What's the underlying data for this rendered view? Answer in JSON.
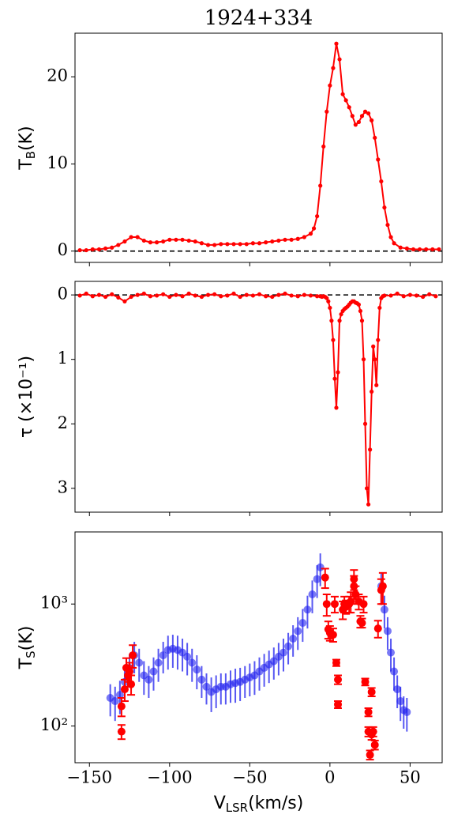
{
  "chart_data": [
    {
      "type": "line",
      "title": "1924+334",
      "ylabel": {
        "base": "T",
        "sub": "B",
        "unit": "(K)"
      },
      "xlim": [
        -159,
        70
      ],
      "xticks": [
        -150,
        -100,
        -50,
        0,
        50
      ],
      "ylim": [
        -1.3,
        25
      ],
      "yticks": [
        0,
        10,
        20
      ],
      "hline": 0,
      "color": "#ff0000",
      "x": [
        -156,
        -152,
        -148,
        -144,
        -140,
        -136,
        -132,
        -128,
        -124,
        -120,
        -116,
        -112,
        -108,
        -104,
        -100,
        -96,
        -92,
        -88,
        -84,
        -80,
        -76,
        -72,
        -68,
        -64,
        -60,
        -56,
        -52,
        -48,
        -44,
        -40,
        -36,
        -32,
        -28,
        -24,
        -20,
        -16,
        -12,
        -10,
        -8,
        -6,
        -4,
        -2,
        0,
        2,
        4,
        6,
        8,
        10,
        12,
        14,
        16,
        18,
        20,
        22,
        24,
        26,
        28,
        30,
        32,
        34,
        36,
        38,
        40,
        44,
        48,
        52,
        56,
        60,
        64,
        68
      ],
      "values": [
        0.1,
        0.1,
        0.2,
        0.2,
        0.3,
        0.4,
        0.7,
        1.1,
        1.6,
        1.6,
        1.2,
        1.0,
        1.0,
        1.1,
        1.3,
        1.3,
        1.3,
        1.2,
        1.1,
        0.9,
        0.7,
        0.7,
        0.8,
        0.8,
        0.8,
        0.8,
        0.8,
        0.9,
        0.9,
        1.0,
        1.1,
        1.2,
        1.3,
        1.3,
        1.4,
        1.6,
        2.0,
        2.6,
        4,
        7.5,
        12,
        16,
        19,
        21,
        23.8,
        22,
        18,
        17.3,
        16.5,
        15.5,
        14.5,
        14.8,
        15.5,
        16,
        15.8,
        15,
        13,
        10.5,
        8,
        5,
        3,
        1.6,
        0.9,
        0.4,
        0.3,
        0.2,
        0.2,
        0.2,
        0.2,
        0.2
      ]
    },
    {
      "type": "line",
      "ylabel": {
        "base": "τ (×10⁻¹)"
      },
      "xlim": [
        -159,
        70
      ],
      "xticks": [
        -150,
        -100,
        -50,
        0,
        50
      ],
      "ylim": [
        3.37,
        -0.21
      ],
      "yticks": [
        0,
        1,
        2,
        3
      ],
      "hline": 0,
      "color": "#ff0000",
      "x": [
        -156,
        -152,
        -148,
        -144,
        -140,
        -136,
        -132,
        -128,
        -124,
        -120,
        -116,
        -112,
        -108,
        -104,
        -100,
        -96,
        -92,
        -88,
        -84,
        -80,
        -76,
        -72,
        -68,
        -64,
        -60,
        -56,
        -52,
        -48,
        -44,
        -40,
        -36,
        -32,
        -28,
        -24,
        -20,
        -16,
        -12,
        -8,
        -6,
        -5,
        -4,
        -3,
        -2,
        -1,
        0,
        1,
        2,
        3,
        4,
        5,
        6,
        7,
        8,
        9,
        10,
        11,
        12,
        13,
        14,
        15,
        16,
        17,
        18,
        19,
        20,
        21,
        22,
        23,
        24,
        25,
        26,
        27,
        28,
        29,
        30,
        31,
        32,
        33,
        34,
        38,
        42,
        46,
        50,
        54,
        58,
        62,
        66
      ],
      "values": [
        0.01,
        -0.02,
        0.02,
        0,
        0.03,
        -0.01,
        0.04,
        0.1,
        0.03,
        0,
        -0.02,
        0.02,
        0.01,
        -0.01,
        0.03,
        0,
        0.02,
        -0.02,
        0.01,
        0.03,
        0,
        -0.01,
        0.02,
        0.01,
        -0.02,
        0.03,
        0,
        0.01,
        -0.01,
        0.02,
        0.03,
        0,
        -0.02,
        0.01,
        0.02,
        0,
        0.01,
        0.02,
        0.02,
        0.03,
        0.02,
        0.03,
        0.05,
        0.1,
        0.2,
        0.4,
        0.7,
        1.3,
        1.75,
        1.2,
        0.4,
        0.3,
        0.25,
        0.22,
        0.2,
        0.18,
        0.15,
        0.12,
        0.1,
        0.1,
        0.12,
        0.13,
        0.15,
        0.25,
        0.4,
        1.0,
        2.0,
        3.0,
        3.25,
        2.4,
        1.5,
        0.8,
        1.0,
        1.4,
        0.7,
        0.2,
        0.05,
        0.02,
        0.01,
        0.01,
        -0.02,
        0.02,
        0,
        0.01,
        0.03,
        -0.01,
        0.02
      ]
    },
    {
      "type": "scatter",
      "ylabel": {
        "base": "T",
        "sub": "S",
        "unit": "(K)"
      },
      "xlabel": {
        "base": "V",
        "sub": "LSR",
        "unit": "(km/s)"
      },
      "xlim": [
        -159,
        70
      ],
      "xticks": [
        {
          "value": -150,
          "label": "−150"
        },
        {
          "value": -100,
          "label": "−100"
        },
        {
          "value": -50,
          "label": "−50"
        },
        0,
        50
      ],
      "ylim": [
        50,
        3900
      ],
      "log_y": true,
      "yticks": [
        {
          "value": 100,
          "label": "10²"
        },
        {
          "value": 1000,
          "label": "10³"
        }
      ],
      "series": [
        {
          "color": "#2020ee",
          "x": [
            -137,
            -134,
            -131,
            -128,
            -125,
            -122,
            -119,
            -116,
            -113,
            -110,
            -107,
            -104,
            -101,
            -98,
            -95,
            -92,
            -89,
            -86,
            -83,
            -80,
            -77,
            -74,
            -71,
            -68,
            -65,
            -62,
            -59,
            -56,
            -53,
            -50,
            -47,
            -44,
            -41,
            -38,
            -35,
            -32,
            -29,
            -26,
            -23,
            -20,
            -17,
            -14,
            -11,
            -8,
            -6,
            32,
            34,
            36,
            38,
            40,
            42,
            44,
            46,
            48
          ],
          "values": [
            170,
            160,
            180,
            230,
            300,
            380,
            330,
            260,
            240,
            280,
            330,
            380,
            420,
            430,
            420,
            400,
            370,
            330,
            290,
            240,
            210,
            190,
            200,
            210,
            210,
            220,
            225,
            230,
            240,
            250,
            260,
            280,
            300,
            320,
            340,
            370,
            400,
            450,
            520,
            600,
            700,
            900,
            1200,
            1600,
            2000,
            1400,
            900,
            600,
            400,
            280,
            200,
            160,
            135,
            130
          ],
          "errors": [
            50,
            50,
            55,
            70,
            90,
            110,
            100,
            80,
            70,
            85,
            100,
            110,
            130,
            130,
            130,
            120,
            110,
            100,
            90,
            70,
            60,
            60,
            60,
            60,
            60,
            65,
            70,
            70,
            70,
            75,
            80,
            85,
            90,
            95,
            100,
            110,
            120,
            130,
            150,
            180,
            210,
            270,
            360,
            480,
            600,
            420,
            270,
            180,
            120,
            85,
            60,
            50,
            40,
            40
          ]
        },
        {
          "color": "#ff0000",
          "xerr": 2,
          "x": [
            -130,
            -130,
            -128,
            -127,
            -126,
            -125,
            -124,
            -123,
            -3,
            -2,
            -1,
            0,
            2,
            3,
            4,
            5,
            5,
            8,
            9,
            10,
            12,
            13,
            15,
            15,
            16,
            18,
            19,
            20,
            21,
            22,
            24,
            24,
            25,
            26,
            26,
            27,
            28,
            30,
            32,
            33
          ],
          "values": [
            90,
            145,
            200,
            300,
            260,
            280,
            220,
            380,
            1650,
            1000,
            620,
            580,
            560,
            1000,
            330,
            240,
            150,
            900,
            1000,
            950,
            1000,
            1050,
            1400,
            1600,
            1200,
            1050,
            720,
            700,
            1000,
            230,
            130,
            90,
            58,
            190,
            85,
            90,
            70,
            630,
            1300,
            1400
          ],
          "errors": [
            12,
            25,
            40,
            60,
            50,
            50,
            40,
            80,
            300,
            200,
            100,
            80,
            70,
            150,
            20,
            20,
            10,
            150,
            150,
            120,
            150,
            200,
            300,
            300,
            200,
            150,
            80,
            60,
            150,
            15,
            10,
            8,
            5,
            15,
            8,
            8,
            6,
            100,
            300,
            400
          ]
        }
      ]
    }
  ]
}
